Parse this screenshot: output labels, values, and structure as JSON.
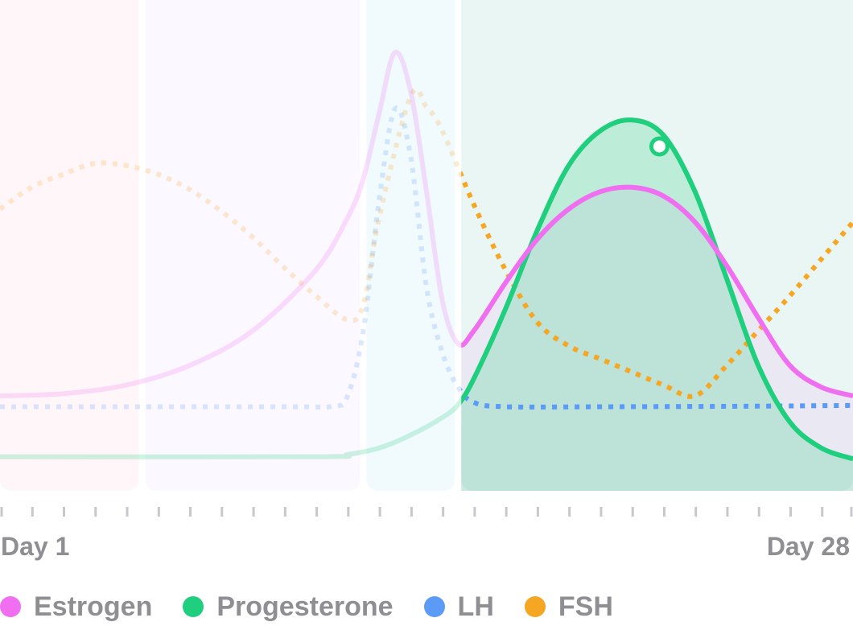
{
  "chart_data": {
    "type": "line",
    "xlabel": "",
    "ylabel": "",
    "x_tick_labels": {
      "start": "Day 1",
      "end": "Day 28"
    },
    "xlim": [
      1,
      28
    ],
    "ylim": [
      0,
      1
    ],
    "grid": false,
    "legend_position": "bottom",
    "phases": [
      {
        "start": 1,
        "end": 5.5,
        "color": "#fff6f9",
        "highlighted": false
      },
      {
        "start": 5.5,
        "end": 12.5,
        "color": "#fbf8ff",
        "highlighted": false
      },
      {
        "start": 12.5,
        "end": 15.5,
        "color": "#f1fafd",
        "highlighted": false
      },
      {
        "start": 15.5,
        "end": 28,
        "color": "#e9f6f4",
        "highlighted": true
      }
    ],
    "highlight_range": [
      15.5,
      28
    ],
    "marker": {
      "series": "Progesterone",
      "x": 22
    },
    "series": [
      {
        "name": "Estrogen",
        "color": "#f06ef0",
        "style": "solid",
        "fill": true,
        "points": [
          [
            1,
            0.2
          ],
          [
            3,
            0.205
          ],
          [
            5,
            0.225
          ],
          [
            7,
            0.27
          ],
          [
            9,
            0.35
          ],
          [
            11,
            0.49
          ],
          [
            12,
            0.61
          ],
          [
            12.5,
            0.7
          ],
          [
            13,
            0.85
          ],
          [
            13.5,
            0.99
          ],
          [
            14,
            0.9
          ],
          [
            14.5,
            0.67
          ],
          [
            15,
            0.42
          ],
          [
            15.5,
            0.32
          ],
          [
            16,
            0.35
          ],
          [
            17,
            0.46
          ],
          [
            18,
            0.56
          ],
          [
            19,
            0.63
          ],
          [
            20,
            0.67
          ],
          [
            21,
            0.68
          ],
          [
            22,
            0.66
          ],
          [
            23,
            0.6
          ],
          [
            24,
            0.5
          ],
          [
            25,
            0.38
          ],
          [
            26,
            0.27
          ],
          [
            27,
            0.22
          ],
          [
            28,
            0.2
          ]
        ]
      },
      {
        "name": "Progesterone",
        "color": "#1fcf7d",
        "style": "solid",
        "fill": true,
        "points": [
          [
            1,
            0.06
          ],
          [
            11,
            0.06
          ],
          [
            12,
            0.065
          ],
          [
            13,
            0.08
          ],
          [
            14,
            0.11
          ],
          [
            15,
            0.15
          ],
          [
            15.5,
            0.18
          ],
          [
            16,
            0.24
          ],
          [
            17,
            0.4
          ],
          [
            18,
            0.58
          ],
          [
            19,
            0.73
          ],
          [
            20,
            0.81
          ],
          [
            21,
            0.835
          ],
          [
            22,
            0.8
          ],
          [
            23,
            0.67
          ],
          [
            24,
            0.47
          ],
          [
            25,
            0.27
          ],
          [
            26,
            0.14
          ],
          [
            27,
            0.08
          ],
          [
            28,
            0.055
          ]
        ]
      },
      {
        "name": "LH",
        "color": "#5b9bf5",
        "style": "dotted",
        "fill": false,
        "points": [
          [
            1,
            0.175
          ],
          [
            10,
            0.175
          ],
          [
            11.5,
            0.176
          ],
          [
            12,
            0.2
          ],
          [
            12.5,
            0.35
          ],
          [
            13,
            0.65
          ],
          [
            13.5,
            0.86
          ],
          [
            14,
            0.75
          ],
          [
            14.5,
            0.45
          ],
          [
            15,
            0.3
          ],
          [
            15.5,
            0.22
          ],
          [
            16,
            0.185
          ],
          [
            17,
            0.175
          ],
          [
            20,
            0.175
          ],
          [
            24,
            0.176
          ],
          [
            28,
            0.178
          ]
        ]
      },
      {
        "name": "FSH",
        "color": "#f5a623",
        "style": "dotted",
        "fill": false,
        "points": [
          [
            1,
            0.63
          ],
          [
            2,
            0.68
          ],
          [
            3,
            0.71
          ],
          [
            4,
            0.735
          ],
          [
            5,
            0.73
          ],
          [
            6,
            0.71
          ],
          [
            7,
            0.675
          ],
          [
            8,
            0.625
          ],
          [
            9,
            0.565
          ],
          [
            10,
            0.495
          ],
          [
            11,
            0.43
          ],
          [
            12,
            0.375
          ],
          [
            12.5,
            0.41
          ],
          [
            13,
            0.61
          ],
          [
            14,
            0.89
          ],
          [
            14.5,
            0.865
          ],
          [
            15,
            0.81
          ],
          [
            16,
            0.64
          ],
          [
            17,
            0.49
          ],
          [
            18,
            0.37
          ],
          [
            19,
            0.315
          ],
          [
            20,
            0.285
          ],
          [
            21,
            0.255
          ],
          [
            22,
            0.225
          ],
          [
            23,
            0.2
          ],
          [
            24,
            0.27
          ],
          [
            25,
            0.35
          ],
          [
            26,
            0.43
          ],
          [
            27,
            0.515
          ],
          [
            28,
            0.6
          ]
        ]
      }
    ]
  }
}
